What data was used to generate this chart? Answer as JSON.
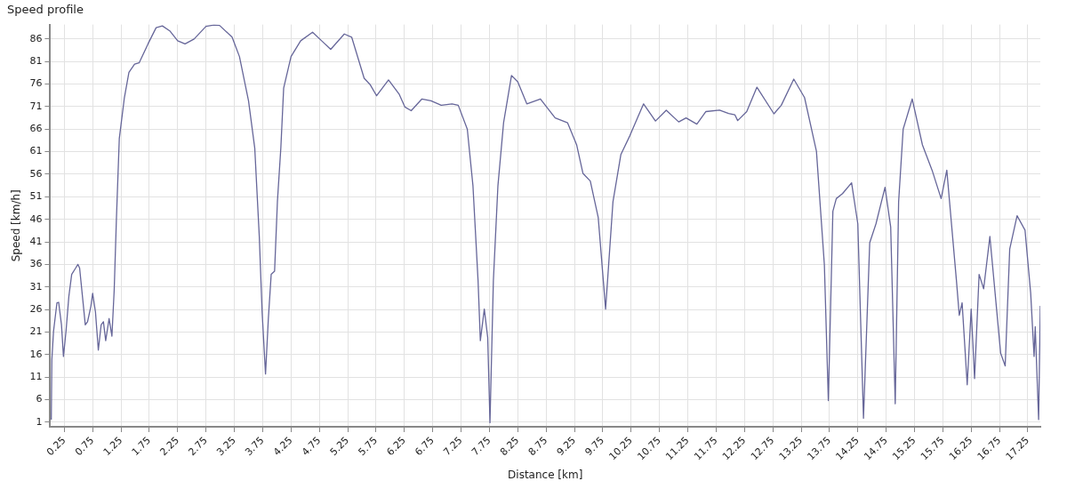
{
  "chart_data": {
    "type": "line",
    "title": "Speed profile",
    "xlabel": "Distance [km]",
    "ylabel": "Speed [km/h]",
    "x": [
      0.02,
      0.03,
      0.06,
      0.12,
      0.15,
      0.2,
      0.235,
      0.28,
      0.33,
      0.38,
      0.45,
      0.49,
      0.52,
      0.57,
      0.62,
      0.66,
      0.72,
      0.75,
      0.8,
      0.85,
      0.9,
      0.94,
      0.98,
      1.04,
      1.09,
      1.13,
      1.17,
      1.22,
      1.31,
      1.39,
      1.49,
      1.57,
      1.73,
      1.87,
      1.98,
      2.11,
      2.25,
      2.38,
      2.54,
      2.75,
      2.89,
      2.99,
      3.21,
      3.34,
      3.5,
      3.61,
      3.69,
      3.74,
      3.8,
      3.85,
      3.9,
      3.96,
      4.01,
      4.07,
      4.12,
      4.25,
      4.42,
      4.63,
      4.79,
      4.95,
      5.19,
      5.32,
      5.54,
      5.65,
      5.76,
      5.97,
      6.16,
      6.26,
      6.37,
      6.56,
      6.72,
      6.9,
      7.09,
      7.2,
      7.36,
      7.46,
      7.55,
      7.59,
      7.66,
      7.72,
      7.76,
      7.82,
      7.9,
      8.0,
      8.14,
      8.25,
      8.41,
      8.65,
      8.91,
      9.13,
      9.29,
      9.4,
      9.53,
      9.67,
      9.8,
      9.93,
      10.07,
      10.23,
      10.47,
      10.68,
      10.87,
      11.09,
      11.22,
      11.41,
      11.57,
      11.81,
      11.97,
      12.08,
      12.13,
      12.29,
      12.47,
      12.77,
      12.9,
      13.12,
      13.31,
      13.52,
      13.66,
      13.73,
      13.81,
      13.87,
      13.98,
      14.14,
      14.25,
      14.35,
      14.46,
      14.57,
      14.73,
      14.83,
      14.91,
      14.97,
      15.05,
      15.21,
      15.39,
      15.56,
      15.72,
      15.82,
      15.99,
      16.04,
      16.09,
      16.18,
      16.25,
      16.31,
      16.39,
      16.47,
      16.58,
      16.77,
      16.85,
      16.93,
      17.06,
      17.2,
      17.3,
      17.36,
      17.38,
      17.44,
      17.47
    ],
    "series": [
      {
        "color": "#666699",
        "values": [
          1.6,
          14.9,
          21.2,
          27.5,
          27.6,
          22.6,
          15.6,
          21.2,
          28.9,
          33.8,
          35.2,
          36.0,
          35.2,
          28.9,
          22.6,
          23.3,
          26.8,
          29.6,
          25.4,
          17.0,
          22.6,
          23.3,
          19.1,
          24.0,
          20.1,
          30.3,
          46.4,
          63.9,
          73.0,
          78.6,
          80.4,
          80.7,
          85.0,
          88.5,
          88.9,
          87.8,
          85.6,
          84.9,
          86.0,
          88.8,
          89.1,
          89.0,
          86.4,
          82.1,
          72.3,
          61.8,
          42.2,
          25.4,
          11.7,
          24.0,
          33.8,
          34.5,
          50.0,
          61.8,
          75.1,
          82.1,
          85.6,
          87.5,
          85.6,
          83.7,
          87.1,
          86.4,
          77.3,
          75.8,
          73.4,
          76.9,
          73.7,
          70.9,
          70.1,
          72.7,
          72.3,
          71.3,
          71.6,
          71.3,
          66.0,
          53.4,
          32.4,
          19.1,
          26.1,
          19.8,
          0.9,
          32.4,
          53.4,
          67.4,
          77.9,
          76.5,
          71.6,
          72.7,
          68.5,
          67.4,
          62.5,
          56.2,
          54.5,
          46.4,
          26.1,
          49.9,
          60.4,
          64.6,
          71.6,
          67.8,
          70.2,
          67.6,
          68.5,
          67.1,
          69.9,
          70.2,
          69.5,
          69.2,
          67.9,
          69.9,
          75.3,
          69.4,
          71.3,
          77.1,
          73.0,
          61.1,
          35.9,
          5.8,
          47.8,
          50.6,
          51.7,
          54.1,
          45.0,
          1.9,
          40.8,
          45.0,
          53.1,
          44.3,
          5.1,
          49.9,
          66.0,
          72.7,
          62.5,
          56.9,
          50.6,
          56.9,
          32.4,
          24.7,
          27.5,
          9.3,
          26.1,
          10.7,
          33.8,
          30.6,
          42.2,
          16.3,
          13.5,
          39.4,
          46.8,
          43.6,
          29.6,
          15.6,
          22.2,
          1.6,
          26.8
        ]
      }
    ],
    "xlim": [
      0,
      17.47
    ],
    "xticks": [
      0.25,
      0.75,
      1.25,
      1.75,
      2.25,
      2.75,
      3.25,
      3.75,
      4.25,
      4.75,
      5.25,
      5.75,
      6.25,
      6.75,
      7.25,
      7.75,
      8.25,
      8.75,
      9.25,
      9.75,
      10.25,
      10.75,
      11.25,
      11.75,
      12.25,
      12.75,
      13.25,
      13.75,
      14.25,
      14.75,
      15.25,
      15.75,
      16.25,
      16.75,
      17.25
    ],
    "ylim": [
      0,
      89.2
    ],
    "yticks": [
      1,
      6,
      11,
      16,
      21,
      26,
      31,
      36,
      41,
      46,
      51,
      56,
      61,
      66,
      71,
      76,
      81,
      86
    ],
    "grid": true,
    "legend": false,
    "marker": "none",
    "line_style": "solid"
  }
}
